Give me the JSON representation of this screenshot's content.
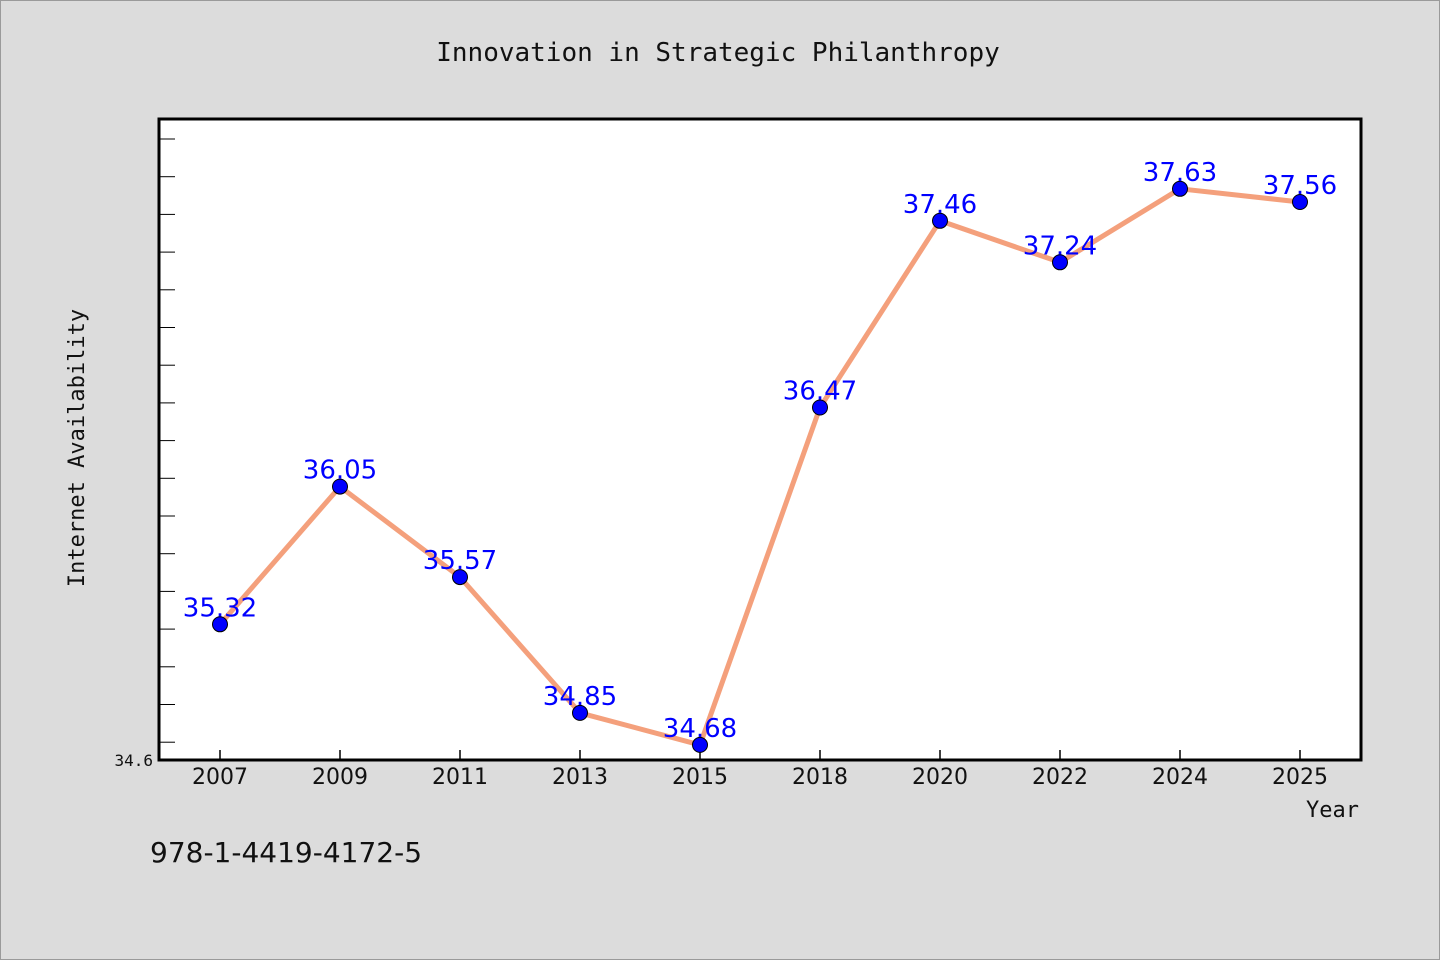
{
  "chart_data": {
    "type": "line",
    "title": "Innovation in Strategic Philanthropy",
    "xlabel": "Year",
    "ylabel": "Internet Availability",
    "categories": [
      "2007",
      "2009",
      "2011",
      "2013",
      "2015",
      "2018",
      "2020",
      "2022",
      "2024",
      "2025"
    ],
    "series": [
      {
        "values": [
          35.32,
          36.05,
          35.57,
          34.85,
          34.68,
          36.47,
          37.46,
          37.24,
          37.63,
          37.56
        ],
        "labels": [
          "35.32",
          "36.05",
          "35.57",
          "34.85",
          "34.68",
          "36.47",
          "37.46",
          "37.24",
          "37.63",
          "37.56"
        ]
      }
    ],
    "ylim": [
      34.6,
      38.0
    ],
    "ytick_labels": [
      "34.6"
    ],
    "grid": false,
    "line_color": "#f4a07c",
    "marker_color": "#0000ff",
    "label_color": "#0000ff"
  },
  "footer": {
    "isbn": "978-1-4419-4172-5"
  }
}
